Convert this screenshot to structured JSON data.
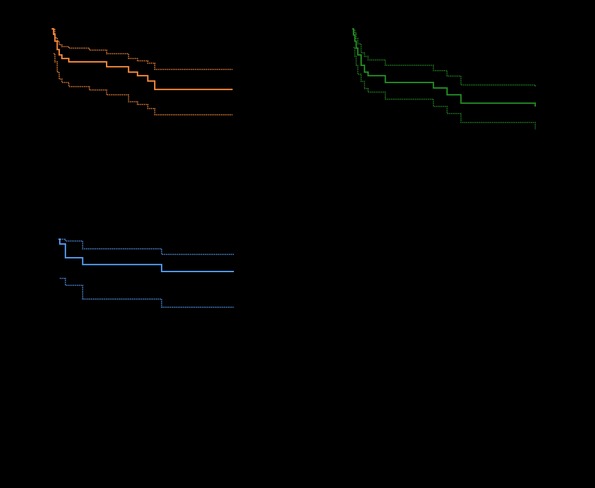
{
  "chart_data": [
    {
      "type": "line",
      "step": "post",
      "xlim": [
        0,
        56
      ],
      "ylim": [
        0,
        1
      ],
      "x": [
        0,
        0.6,
        1.0,
        1.7,
        2.3,
        3.1,
        5.2,
        11.4,
        16.6,
        23.2,
        25.9,
        29.0,
        31.1,
        54.6
      ],
      "series": [
        {
          "color": "#f5883a",
          "style": "solid",
          "values": [
            0.954,
            0.923,
            0.885,
            0.838,
            0.808,
            0.788,
            0.769,
            0.769,
            0.742,
            0.712,
            0.692,
            0.662,
            0.615,
            0.615
          ]
        },
        {
          "color": "#f5883a",
          "style": "dotted",
          "values": [
            0.954,
            0.954,
            0.904,
            0.885,
            0.865,
            0.855,
            0.846,
            0.835,
            0.815,
            0.788,
            0.775,
            0.762,
            0.727,
            0.727
          ]
        },
        {
          "color": "#f5883a",
          "style": "dotted",
          "values": [
            null,
            0.815,
            0.769,
            0.712,
            0.673,
            0.654,
            0.631,
            0.612,
            0.585,
            0.546,
            0.531,
            0.508,
            0.473,
            0.473
          ]
        }
      ]
    },
    {
      "type": "line",
      "step": "post",
      "xlim": [
        0,
        56
      ],
      "ylim": [
        0,
        1
      ],
      "x": [
        0,
        0.4,
        0.8,
        1.2,
        1.7,
        2.7,
        3.7,
        4.8,
        10.0,
        24.5,
        28.6,
        32.8,
        55.2
      ],
      "series": [
        {
          "color": "#228b22",
          "style": "solid",
          "values": [
            0.954,
            0.92,
            0.885,
            0.846,
            0.808,
            0.75,
            0.712,
            0.692,
            0.654,
            0.623,
            0.585,
            0.538,
            0.519
          ]
        },
        {
          "color": "#228b22",
          "style": "dotted",
          "values": [
            0.954,
            0.95,
            0.93,
            0.9,
            0.87,
            0.82,
            0.8,
            0.78,
            0.75,
            0.72,
            0.69,
            0.64,
            0.63
          ]
        },
        {
          "color": "#228b22",
          "style": "dotted",
          "values": [
            null,
            0.85,
            0.8,
            0.75,
            0.7,
            0.66,
            0.62,
            0.6,
            0.56,
            0.52,
            0.48,
            0.43,
            0.39
          ]
        }
      ]
    },
    {
      "type": "line",
      "step": "post",
      "xlim": [
        0,
        56
      ],
      "ylim": [
        0,
        1
      ],
      "x": [
        0,
        0.4,
        2.1,
        7.3,
        31.1,
        52.9
      ],
      "series": [
        {
          "color": "#5599ee",
          "style": "solid",
          "values": [
            0.95,
            0.923,
            0.846,
            0.808,
            0.769,
            0.769
          ]
        },
        {
          "color": "#5599ee",
          "style": "dotted",
          "values": [
            0.95,
            0.95,
            0.94,
            0.896,
            0.865,
            0.865
          ]
        },
        {
          "color": "#5599ee",
          "style": "dotted",
          "values": [
            null,
            0.731,
            0.692,
            0.615,
            0.569,
            0.569
          ]
        }
      ]
    }
  ]
}
